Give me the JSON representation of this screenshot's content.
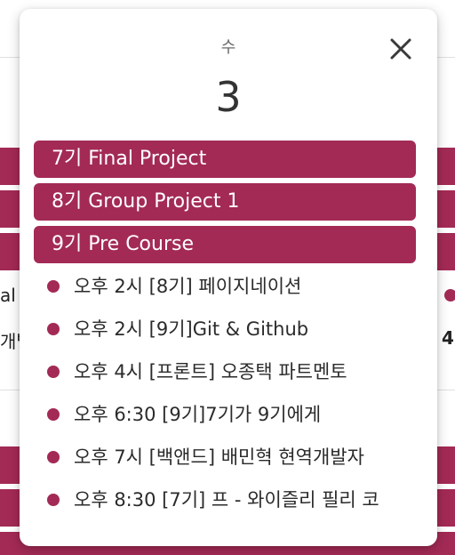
{
  "background": {
    "left_text_1": "al",
    "left_text_2": "개발",
    "right_text_1": "4"
  },
  "popup": {
    "weekday": "수",
    "day": "3",
    "close_icon": "close-icon",
    "chips": [
      {
        "label": "7기 Final Project"
      },
      {
        "label": "8기 Group Project 1"
      },
      {
        "label": "9기 Pre Course"
      }
    ],
    "events": [
      {
        "label": "오후 2시 [8기] 페이지네이션"
      },
      {
        "label": "오후 2시 [9기]Git & Github"
      },
      {
        "label": "오후 4시 [프론트] 오종택 파트멘토"
      },
      {
        "label": "오후 6:30 [9기]7기가 9기에게"
      },
      {
        "label": "오후 7시 [백앤드] 배민혁 현역개발자"
      },
      {
        "label": "오후 8:30 [7기] 프 - 와이즐리 필리 코"
      }
    ]
  },
  "colors": {
    "accent": "#a32a55"
  }
}
